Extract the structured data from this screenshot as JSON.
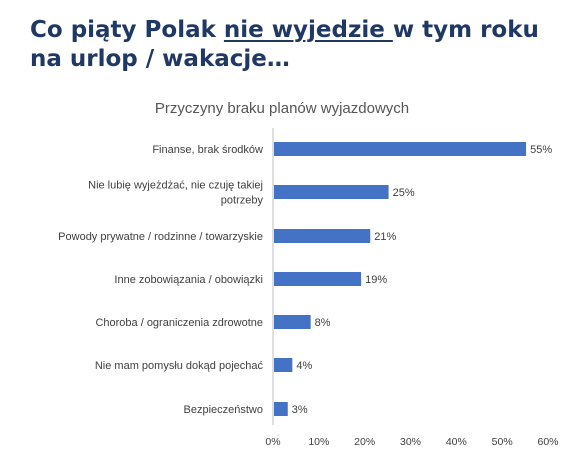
{
  "page": {
    "title_part1": "Co piąty Polak ",
    "title_emphasis": "nie wyjedzie ",
    "title_part2": "w tym roku na urlop / wakacje…",
    "title_color": "#1f3864"
  },
  "chart_data": {
    "type": "bar",
    "orientation": "horizontal",
    "title": "Przyczyny braku planów wyjazdowych",
    "categories": [
      [
        "Finanse, brak środków"
      ],
      [
        "Nie lubię wyjeżdżać, nie czuję takiej",
        "potrzeby"
      ],
      [
        "Powody prywatne / rodzinne  / towarzyskie"
      ],
      [
        "Inne zobowiązania / obowiązki"
      ],
      [
        "Choroba / ograniczenia zdrowotne"
      ],
      [
        "Nie mam pomysłu dokąd pojechać"
      ],
      [
        "Bezpieczeństwo"
      ]
    ],
    "values": [
      55,
      25,
      21,
      19,
      8,
      4,
      3
    ],
    "value_labels": [
      "55%",
      "25%",
      "21%",
      "19%",
      "8%",
      "4%",
      "3%"
    ],
    "xlim": [
      0,
      60
    ],
    "xticks": [
      "0%",
      "10%",
      "20%",
      "30%",
      "40%",
      "50%",
      "60%"
    ],
    "grid": false,
    "bar_color": "#4472c4"
  }
}
